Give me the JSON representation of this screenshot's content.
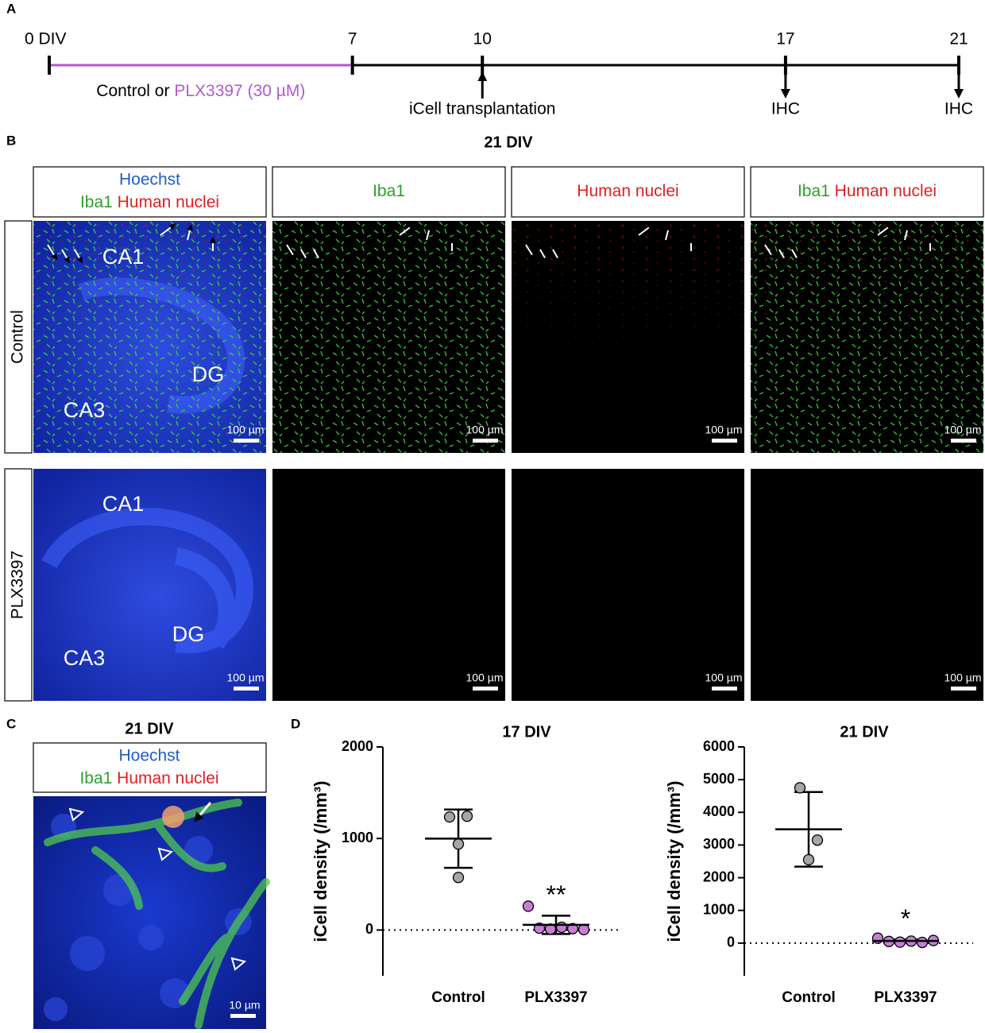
{
  "panel_labels": [
    "A",
    "B",
    "C",
    "D"
  ],
  "timeline": {
    "xlim": [
      0,
      21
    ],
    "xticks": [
      {
        "value": 0,
        "label": "0 DIV"
      },
      7,
      10,
      17,
      21
    ],
    "treatment": {
      "start": 0,
      "end": 7,
      "color": "#b05ad0",
      "text": [
        "Control or",
        "PLX3397 (30 µM)"
      ]
    },
    "events": [
      {
        "at": 10,
        "label": "iCell transplantation",
        "direction": "up"
      },
      {
        "at": 17,
        "label": "IHC",
        "direction": "down"
      },
      {
        "at": 21,
        "label": "IHC",
        "direction": "down"
      }
    ]
  },
  "panel_b": {
    "title": "21 DIV",
    "columns": [
      [
        "Hoechst",
        "Iba1",
        "Human nuclei"
      ],
      [
        "Iba1"
      ],
      [
        "Human nuclei"
      ],
      [
        "Iba1",
        "Human nuclei"
      ]
    ],
    "rows": [
      "Control",
      "PLX3397"
    ],
    "regions": [
      "CA1",
      "DG",
      "CA3"
    ],
    "scale_bar": "100 µm"
  },
  "panel_c": {
    "title": "21 DIV",
    "header": [
      "Hoechst",
      "Iba1",
      "Human nuclei"
    ],
    "scale_bar": "10 µm"
  },
  "chart_data": [
    {
      "type": "scatter",
      "title": "17 DIV",
      "ylabel": "iCell density (/mm³)",
      "categories": [
        "Control",
        "PLX3397"
      ],
      "points": [
        [
          1235,
          1243,
          939,
          574
        ],
        [
          260,
          20,
          10,
          30,
          15,
          5
        ]
      ],
      "means": [
        998,
        57
      ],
      "sds": [
        318,
        100
      ],
      "colors": [
        "#a6a6a6",
        "#c77dd6"
      ],
      "annotations": [
        {
          "category": 1,
          "text": "**"
        }
      ],
      "reference_line": 0,
      "ylim": [
        -500,
        2000
      ],
      "yticks": [
        0,
        1000,
        2000
      ]
    },
    {
      "type": "scatter",
      "title": "21 DIV",
      "ylabel": "iCell density (/mm³)",
      "categories": [
        "Control",
        "PLX3397"
      ],
      "points": [
        [
          4750,
          3150,
          2550
        ],
        [
          150,
          50,
          30,
          60,
          20,
          80
        ]
      ],
      "means": [
        3480,
        65
      ],
      "sds": [
        1140,
        45
      ],
      "colors": [
        "#a6a6a6",
        "#c77dd6"
      ],
      "annotations": [
        {
          "category": 1,
          "text": "*"
        }
      ],
      "reference_line": 0,
      "ylim": [
        -1000,
        6000
      ],
      "yticks": [
        0,
        1000,
        2000,
        3000,
        4000,
        5000,
        6000
      ]
    }
  ]
}
